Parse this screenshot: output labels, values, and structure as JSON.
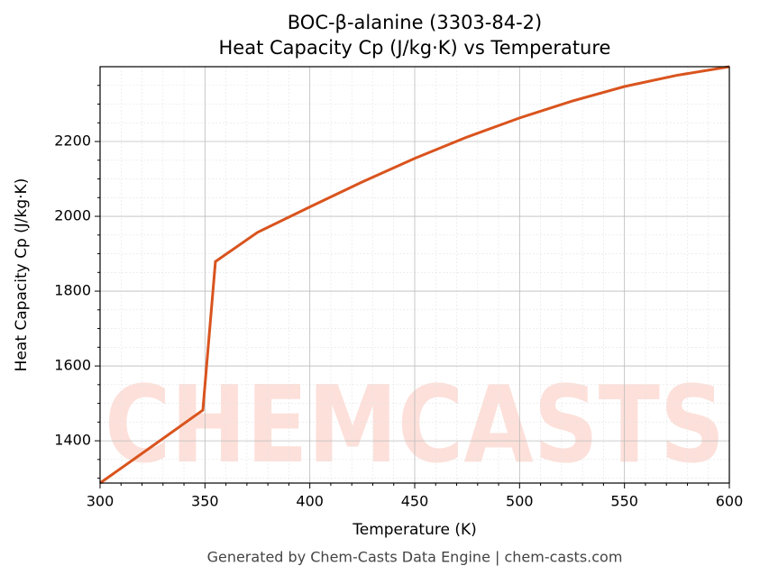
{
  "chart_data": {
    "type": "line",
    "title": "BOC-β-alanine (3303-84-2)",
    "subtitle": "Heat Capacity Cp (J/kg·K) vs Temperature",
    "x_label": "Temperature (K)",
    "y_label": "Heat Capacity Cp (J/kg·K)",
    "footer": "Generated by Chem-Casts Data Engine | chem-casts.com",
    "watermark": "CHEMCASTS",
    "x": [
      300,
      325,
      349,
      355,
      375,
      400,
      425,
      450,
      475,
      500,
      525,
      550,
      575,
      600
    ],
    "series": [
      {
        "name": "Cp",
        "color": "#d9541e",
        "values": [
          1287,
          1386,
          1482,
          1879,
          1957,
          2025,
          2092,
          2155,
          2212,
          2263,
          2308,
          2347,
          2377,
          2400
        ]
      }
    ],
    "xlim": [
      300,
      600
    ],
    "ylim": [
      1287,
      2400
    ],
    "xticks": [
      300,
      350,
      400,
      450,
      500,
      550,
      600
    ],
    "yticks": [
      1400,
      1600,
      1800,
      2000,
      2200
    ],
    "xminorticks": [
      310,
      320,
      330,
      340,
      360,
      370,
      380,
      390,
      410,
      420,
      430,
      440,
      460,
      470,
      480,
      490,
      510,
      520,
      530,
      540,
      560,
      570,
      580,
      590
    ],
    "yminorticks": [
      1300,
      1350,
      1450,
      1500,
      1550,
      1650,
      1700,
      1750,
      1850,
      1900,
      1950,
      2050,
      2100,
      2150,
      2250,
      2300,
      2350
    ],
    "grid": true
  }
}
